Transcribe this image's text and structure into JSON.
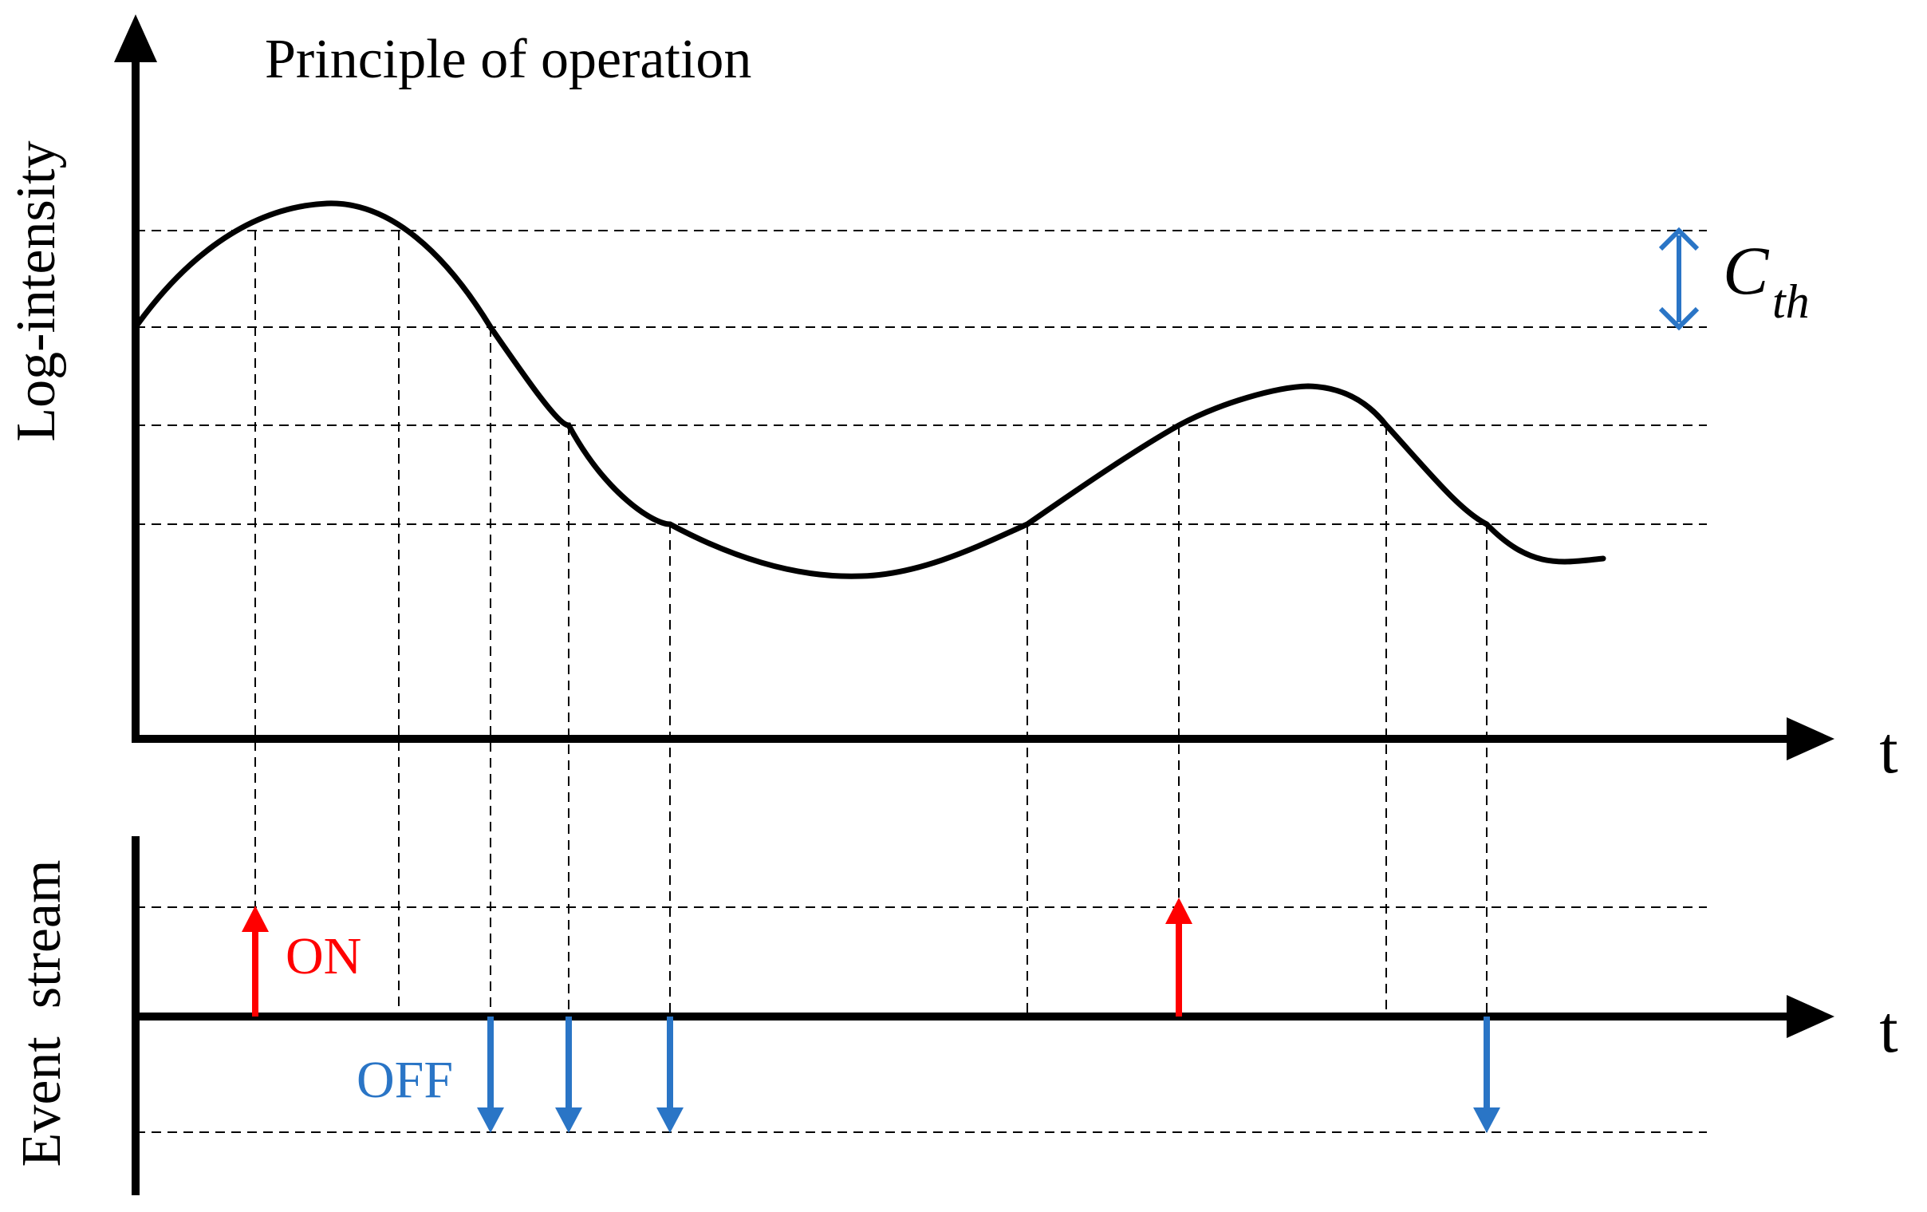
{
  "title": "Principle of operation",
  "top_panel": {
    "y_axis_label": "Log-intensity",
    "x_axis_label": "t"
  },
  "bottom_panel": {
    "y_axis_label": "Event  stream",
    "x_axis_label": "t",
    "on_label": "ON",
    "off_label": "OFF"
  },
  "threshold": {
    "symbol": "C",
    "subscript": "th"
  },
  "colors": {
    "axis": "#000000",
    "curve": "#000000",
    "on_event": "#ff0000",
    "off_event": "#2a75c6",
    "threshold_marker": "#2a75c6"
  },
  "events": [
    {
      "polarity": "ON"
    },
    {
      "polarity": "OFF"
    },
    {
      "polarity": "OFF"
    },
    {
      "polarity": "OFF"
    },
    {
      "polarity": "ON"
    },
    {
      "polarity": "OFF"
    }
  ]
}
